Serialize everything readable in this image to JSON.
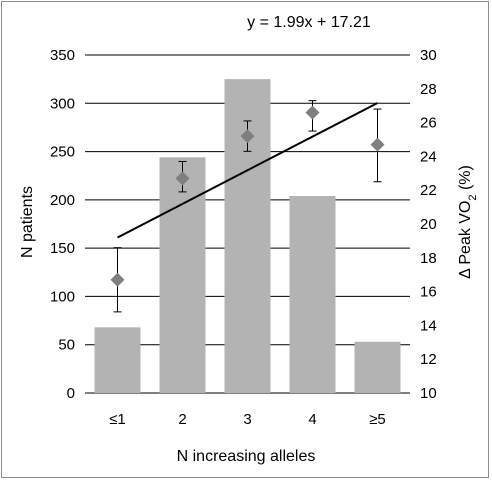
{
  "chart_data": {
    "type": "bar",
    "categories": [
      "≤1",
      "2",
      "3",
      "4",
      "≥5"
    ],
    "xlabel": "N increasing alleles",
    "ylabel": "N patients",
    "y2label": "Δ Peak VO",
    "y2label_sub": "2",
    "y2label_suffix": " (%)",
    "ylim": [
      0,
      350
    ],
    "y2lim": [
      10,
      30
    ],
    "y_ticks": [
      0,
      50,
      100,
      150,
      200,
      250,
      300,
      350
    ],
    "y2_ticks": [
      10,
      12,
      14,
      16,
      18,
      20,
      22,
      24,
      26,
      28,
      30
    ],
    "grid": true,
    "series": [
      {
        "type": "bar",
        "axis": "left",
        "color": "#b3b3b3",
        "values": [
          68,
          244,
          325,
          204,
          53
        ]
      },
      {
        "type": "scatter",
        "axis": "right",
        "marker": "diamond",
        "color": "#7f7f7f",
        "values": [
          16.7,
          22.7,
          25.2,
          26.6,
          24.7
        ],
        "error_low": [
          14.8,
          21.9,
          24.3,
          25.5,
          22.5
        ],
        "error_high": [
          18.6,
          23.7,
          26.1,
          27.3,
          26.8
        ]
      }
    ],
    "trendline": {
      "axis": "right",
      "color": "#000000",
      "equation_text": "y = 1.99x + 17.21",
      "slope": 1.99,
      "intercept": 17.21
    }
  }
}
